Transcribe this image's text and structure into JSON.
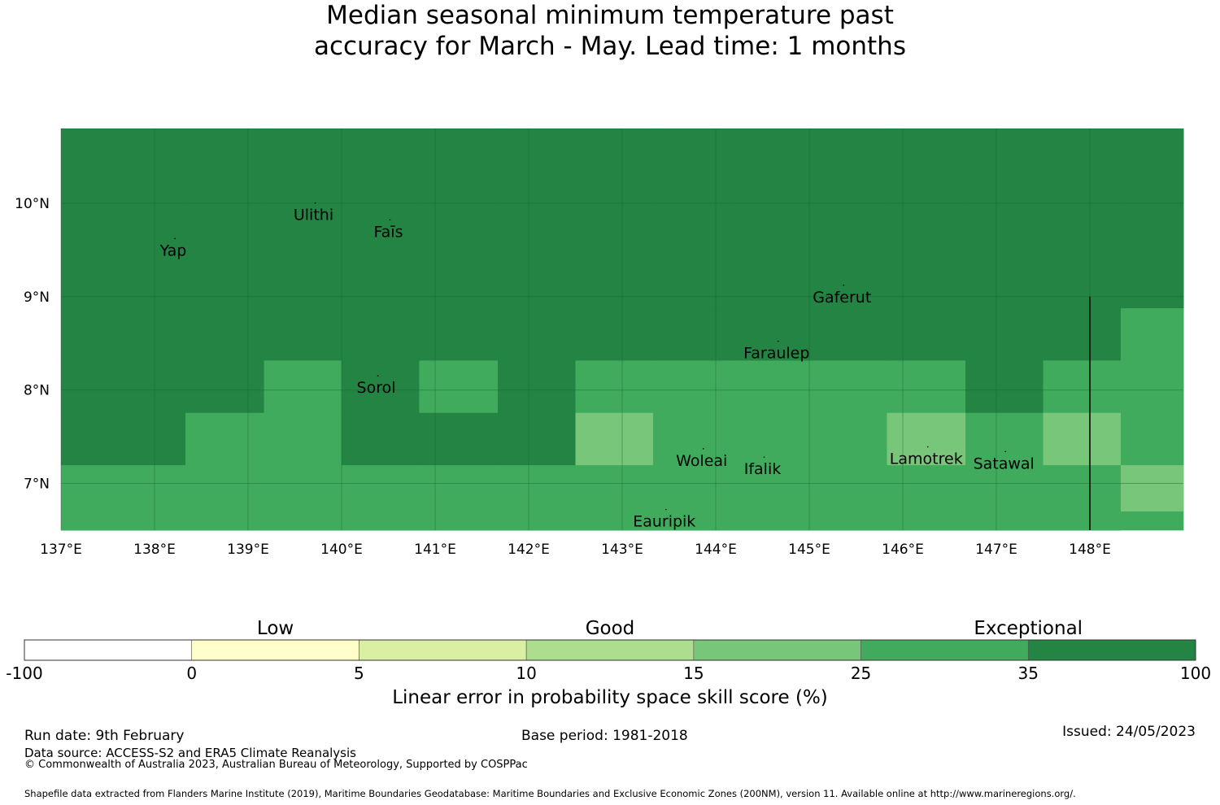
{
  "title": {
    "line1": "Median seasonal minimum temperature past",
    "line2": "accuracy for March - May. Lead time: 1 months"
  },
  "map": {
    "lon_range": [
      137,
      149
    ],
    "lat_range": [
      6.5,
      10.8
    ],
    "lon_ticks": [
      {
        "value": 137,
        "label": "137°E"
      },
      {
        "value": 138,
        "label": "138°E"
      },
      {
        "value": 139,
        "label": "139°E"
      },
      {
        "value": 140,
        "label": "140°E"
      },
      {
        "value": 141,
        "label": "141°E"
      },
      {
        "value": 142,
        "label": "142°E"
      },
      {
        "value": 143,
        "label": "143°E"
      },
      {
        "value": 144,
        "label": "144°E"
      },
      {
        "value": 145,
        "label": "145°E"
      },
      {
        "value": 146,
        "label": "146°E"
      },
      {
        "value": 147,
        "label": "147°E"
      },
      {
        "value": 148,
        "label": "148°E"
      }
    ],
    "lat_ticks": [
      {
        "value": 10,
        "label": "10°N"
      },
      {
        "value": 9,
        "label": "9°N"
      },
      {
        "value": 8,
        "label": "8°N"
      },
      {
        "value": 7,
        "label": "7°N"
      }
    ],
    "grid": {
      "lon_edges": [
        137.0,
        138.33,
        139.17,
        140.0,
        140.83,
        141.67,
        142.5,
        143.33,
        144.17,
        145.0,
        145.83,
        146.67,
        147.5,
        148.33,
        149.0
      ],
      "lat_edges": [
        6.5,
        7.2,
        7.76,
        8.32,
        8.88,
        10.8
      ],
      "rows": [
        [
          "c25",
          "c25",
          "c25",
          "c25",
          "c25",
          "c25",
          "c25",
          "c25",
          "c25",
          "c25",
          "c25",
          "c25",
          "c25",
          "c15"
        ],
        [
          "c35",
          "c25",
          "c25",
          "c35",
          "c35",
          "c35",
          "c15",
          "c25",
          "c25",
          "c25",
          "c15",
          "c25",
          "c15",
          "c25"
        ],
        [
          "c35",
          "c35",
          "c25",
          "c35",
          "c25",
          "c35",
          "c25",
          "c25",
          "c25",
          "c25",
          "c25",
          "c35",
          "c25",
          "c25"
        ],
        [
          "c35",
          "c35",
          "c35",
          "c35",
          "c35",
          "c35",
          "c35",
          "c35",
          "c35",
          "c35",
          "c35",
          "c35",
          "c35",
          "c25"
        ],
        [
          "c35",
          "c35",
          "c35",
          "c35",
          "c35",
          "c35",
          "c35",
          "c35",
          "c35",
          "c35",
          "c35",
          "c35",
          "c35",
          "c35"
        ]
      ],
      "bottom_right_cell": {
        "lon_from": 148.33,
        "lat_from": 6.5,
        "lat_to": 6.7,
        "class": "c25"
      }
    },
    "boundary_line_lon": 148,
    "boundary_line_lat": [
      6.5,
      9.0
    ],
    "places": [
      {
        "name": "Ulithi",
        "lon": 139.7,
        "lat": 9.88
      },
      {
        "name": "Faīs",
        "lon": 140.5,
        "lat": 9.7
      },
      {
        "name": "Yap",
        "lon": 138.2,
        "lat": 9.5
      },
      {
        "name": "Gaferut",
        "lon": 145.35,
        "lat": 9.0
      },
      {
        "name": "Faraulep",
        "lon": 144.65,
        "lat": 8.4
      },
      {
        "name": "Sorol",
        "lon": 140.37,
        "lat": 8.03
      },
      {
        "name": "Woleai",
        "lon": 143.85,
        "lat": 7.25
      },
      {
        "name": "Ifalik",
        "lon": 144.5,
        "lat": 7.16
      },
      {
        "name": "Lamotrek",
        "lon": 146.25,
        "lat": 7.27
      },
      {
        "name": "Satawal",
        "lon": 147.08,
        "lat": 7.22
      },
      {
        "name": "Eauripik",
        "lon": 143.45,
        "lat": 6.6
      }
    ]
  },
  "colors": {
    "c100": "#ffffff",
    "c0": "#ffffcc",
    "c5": "#d9f0a3",
    "c10": "#addd8e",
    "c15": "#78c679",
    "c25": "#41ab5d",
    "c35": "#238443",
    "grid": "#1a6633",
    "boundary": "#000000"
  },
  "colorbar": {
    "categories": [
      {
        "label": "Low",
        "at": 0.2143
      },
      {
        "label": "Good",
        "at": 0.5
      },
      {
        "label": "Exceptional",
        "at": 0.8571
      }
    ],
    "segments": [
      {
        "from": "-100",
        "to": "0",
        "color_key": "c100"
      },
      {
        "from": "0",
        "to": "5",
        "color_key": "c0"
      },
      {
        "from": "5",
        "to": "10",
        "color_key": "c5"
      },
      {
        "from": "10",
        "to": "15",
        "color_key": "c10"
      },
      {
        "from": "15",
        "to": "25",
        "color_key": "c15"
      },
      {
        "from": "25",
        "to": "35",
        "color_key": "c25"
      },
      {
        "from": "35",
        "to": "100",
        "color_key": "c35"
      }
    ],
    "ticks": [
      "-100",
      "0",
      "5",
      "10",
      "15",
      "25",
      "35",
      "100"
    ],
    "title": "Linear error in probability space skill score (%)"
  },
  "footer": {
    "run_date": "Run date: 9th February",
    "base_period": "Base period: 1981-2018",
    "issued": "Issued: 24/05/2023",
    "data_source": "Data source: ACCESS-S2 and ERA5 Climate Reanalysis",
    "copyright": "© Commonwealth of Australia 2023, Australian Bureau of Meteorology, Supported by COSPPac",
    "shapefile": "Shapefile data extracted from Flanders Marine Institute (2019), Maritime Boundaries Geodatabase: Maritime Boundaries and Exclusive Economic Zones (200NM), version 11. Available online at http://www.marineregions.org/."
  }
}
